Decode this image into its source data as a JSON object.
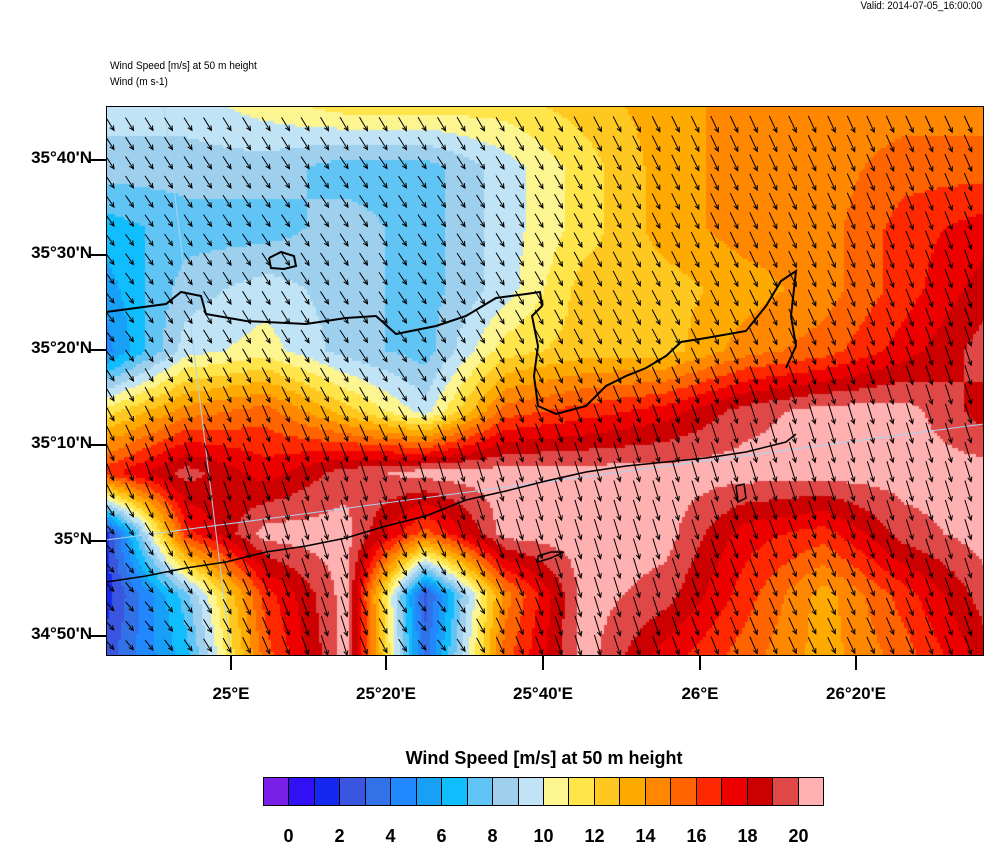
{
  "header": {
    "valid": "Valid: 2014-07-05_16:00:00",
    "subtitle_1": "Wind Speed [m/s] at 50 m height",
    "subtitle_2": "Wind   (m s-1)"
  },
  "axes": {
    "lat_labels": [
      "35°40'N",
      "35°30'N",
      "35°20'N",
      "35°10'N",
      "35°N",
      "34°50'N"
    ],
    "lon_labels": [
      "25°E",
      "25°20'E",
      "25°40'E",
      "26°E",
      "26°20'E"
    ]
  },
  "colorbar": {
    "title": "Wind Speed [m/s] at 50 m height",
    "labels": [
      "0",
      "2",
      "4",
      "6",
      "8",
      "10",
      "12",
      "14",
      "16",
      "18",
      "20"
    ],
    "colors": [
      "#7a1fe8",
      "#3210f5",
      "#1428f0",
      "#3a55e0",
      "#3272e8",
      "#2288ff",
      "#18a0f8",
      "#10beff",
      "#60c4f5",
      "#9ed0ee",
      "#c0e4f6",
      "#fcf590",
      "#ffe44a",
      "#ffc820",
      "#ffaa00",
      "#ff8800",
      "#ff6400",
      "#ff2800",
      "#ee0000",
      "#cc0000",
      "#e04848",
      "#ffb0b0"
    ]
  },
  "map_data": {
    "units": "m/s",
    "speed_grid": [
      [
        9.5,
        9.5,
        10.5,
        11.5,
        11.5,
        11.5,
        12.5,
        13.5,
        14.5,
        14.5,
        14.5,
        14.5
      ],
      [
        8.5,
        8.5,
        8.5,
        7.5,
        7.5,
        9.5,
        11.5,
        13.5,
        14.5,
        14.5,
        15.5,
        15.5
      ],
      [
        6.5,
        7.5,
        7.5,
        8.5,
        7.5,
        9.5,
        11.5,
        13.5,
        14.5,
        14.5,
        16.5,
        17.5
      ],
      [
        5.5,
        8.5,
        9.5,
        8.5,
        7.5,
        9.5,
        12.5,
        12.5,
        13.5,
        14.5,
        16.5,
        18.5
      ],
      [
        4.5,
        9.5,
        10.5,
        8.5,
        7.5,
        11.5,
        12.5,
        12.5,
        14.5,
        15.5,
        17.5,
        19.5
      ],
      [
        11.5,
        14.5,
        15.5,
        12.5,
        9.5,
        15.5,
        16.5,
        17.5,
        19.5,
        20.5,
        20.5,
        18.5
      ],
      [
        16.5,
        19.5,
        17.5,
        19.5,
        20.5,
        20.5,
        20.5,
        20.5,
        20.5,
        20.5,
        20.5,
        20.5
      ],
      [
        1.5,
        16.5,
        20.5,
        20.5,
        15.5,
        20.5,
        20.5,
        20.5,
        17.5,
        16.5,
        19.5,
        20.5
      ],
      [
        1.5,
        7.5,
        16.5,
        20.5,
        2.5,
        14.5,
        20.5,
        19.5,
        16.5,
        13.5,
        16.5,
        19.5
      ],
      [
        2.5,
        6.5,
        15.5,
        20.5,
        3.5,
        15.5,
        20.5,
        17.5,
        15.5,
        13.5,
        15.5,
        18.5
      ]
    ]
  }
}
